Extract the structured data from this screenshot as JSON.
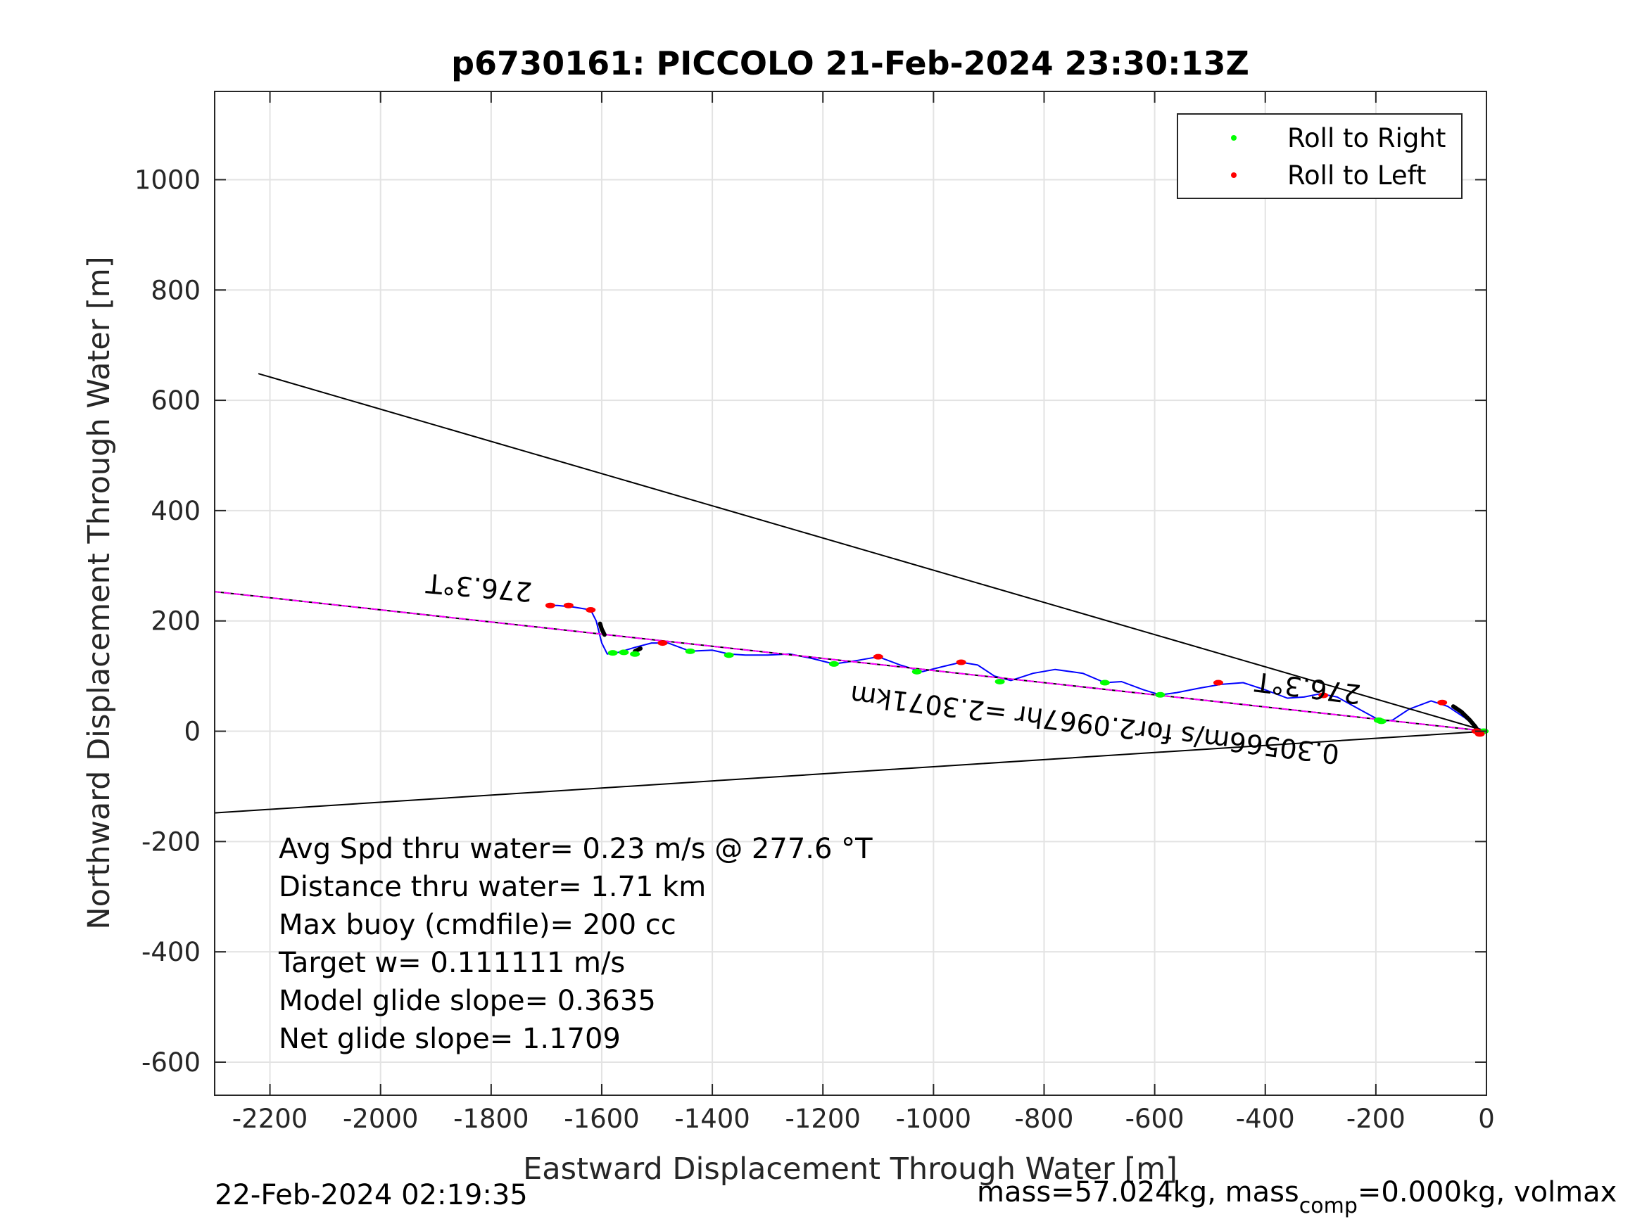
{
  "chart_data": {
    "type": "line",
    "title": "p6730161: PICCOLO 21-Feb-2024 23:30:13Z",
    "xlabel": "Eastward Displacement Through Water [m]",
    "ylabel": "Northward Displacement Through Water [m]",
    "xlim": [
      -2300,
      0
    ],
    "ylim": [
      -660,
      1160
    ],
    "xticks": [
      -2200,
      -2000,
      -1800,
      -1600,
      -1400,
      -1200,
      -1000,
      -800,
      -600,
      -400,
      -200,
      0
    ],
    "yticks": [
      -600,
      -400,
      -200,
      0,
      200,
      400,
      600,
      800,
      1000
    ],
    "xtick_labels": [
      "-2200",
      "-2000",
      "-1800",
      "-1600",
      "-1400",
      "-1200",
      "-1000",
      "-800",
      "-600",
      "-400",
      "-200",
      "0"
    ],
    "ytick_labels": [
      "-600",
      "-400",
      "-200",
      "0",
      "200",
      "400",
      "600",
      "800",
      "1000"
    ],
    "grid": true,
    "legend": {
      "placement": "top-right",
      "entries": [
        {
          "label": "Roll to Right",
          "color": "#00ff00"
        },
        {
          "label": "Roll to Left",
          "color": "#ff0000"
        }
      ]
    },
    "series": [
      {
        "color": "#0000ff",
        "x": [
          0,
          -15,
          -40,
          -70,
          -100,
          -140,
          -170,
          -190,
          -230,
          -270,
          -300,
          -330,
          -360,
          -400,
          -440,
          -480,
          -520,
          -560,
          -590,
          -620,
          -660,
          -690,
          -730,
          -780,
          -820,
          -860,
          -890,
          -920,
          -950,
          -980,
          -1020,
          -1060,
          -1100,
          -1140,
          -1180,
          -1220,
          -1260,
          -1300,
          -1340,
          -1370,
          -1400,
          -1440,
          -1480,
          -1510,
          -1540,
          -1570,
          -1590,
          -1600,
          -1605,
          -1610,
          -1620,
          -1650,
          -1680,
          -1693
        ],
        "y": [
          0,
          5,
          25,
          45,
          55,
          40,
          20,
          18,
          40,
          62,
          68,
          62,
          60,
          75,
          88,
          85,
          78,
          70,
          66,
          75,
          90,
          88,
          105,
          112,
          105,
          92,
          100,
          120,
          125,
          118,
          108,
          120,
          135,
          128,
          122,
          132,
          140,
          138,
          138,
          140,
          147,
          145,
          160,
          160,
          152,
          143,
          140,
          160,
          180,
          200,
          220,
          225,
          228,
          228
        ]
      },
      {
        "color": "#000000",
        "x": [
          -2220,
          0
        ],
        "y": [
          648,
          0
        ]
      },
      {
        "color": "#000000",
        "x": [
          -2300,
          0
        ],
        "y": [
          -148,
          0
        ]
      },
      {
        "color": "#000000",
        "x": [
          -2300,
          0
        ],
        "y": [
          253,
          0
        ]
      },
      {
        "color": "#ff00ff",
        "x": [
          -2300,
          0
        ],
        "y": [
          253,
          0
        ]
      },
      {
        "color": "#000000",
        "x": [
          -60,
          -45,
          -30,
          -20,
          -15
        ],
        "y": [
          45,
          35,
          20,
          8,
          0
        ]
      },
      {
        "color": "#000000",
        "x": [
          -1603,
          -1600,
          -1595
        ],
        "y": [
          195,
          185,
          175
        ]
      },
      {
        "color": "#000000",
        "x": [
          -1540,
          -1530
        ],
        "y": [
          145,
          150
        ]
      }
    ],
    "roll_right_points": {
      "x": [
        -5,
        -190,
        -195,
        -590,
        -690,
        -880,
        -1030,
        -1180,
        -1370,
        -1440,
        -1540,
        -1560,
        -1580
      ],
      "y": [
        0,
        18,
        20,
        66,
        88,
        90,
        108,
        122,
        138,
        145,
        140,
        143,
        142
      ],
      "color": "#00ff00"
    },
    "roll_left_points": {
      "x": [
        -12,
        -18,
        -80,
        -295,
        -485,
        -950,
        -1100,
        -1490,
        -1620,
        -1660,
        -1693
      ],
      "y": [
        -5,
        0,
        52,
        65,
        88,
        125,
        135,
        160,
        220,
        228,
        228
      ],
      "color": "#ff0000"
    },
    "annotations": [
      "276.3°T",
      "276.3°T",
      "0.30566m/s for2.0967hr =2.3071km"
    ],
    "info_text": [
      "Avg Spd thru water=  0.23 m/s @ 277.6 °T",
      "Distance thru water=  1.71 km",
      "Max buoy (cmdfile)= 200 cc",
      "Target w= 0.111111 m/s",
      "Model glide slope= 0.3635",
      "Net glide slope= 1.1709"
    ]
  },
  "footer": {
    "timestamp": "22-Feb-2024 02:19:35",
    "mass_text": "mass=57.024kg, mass",
    "mass_sub": "comp",
    "mass_rest": "=0.000kg, volmax"
  }
}
